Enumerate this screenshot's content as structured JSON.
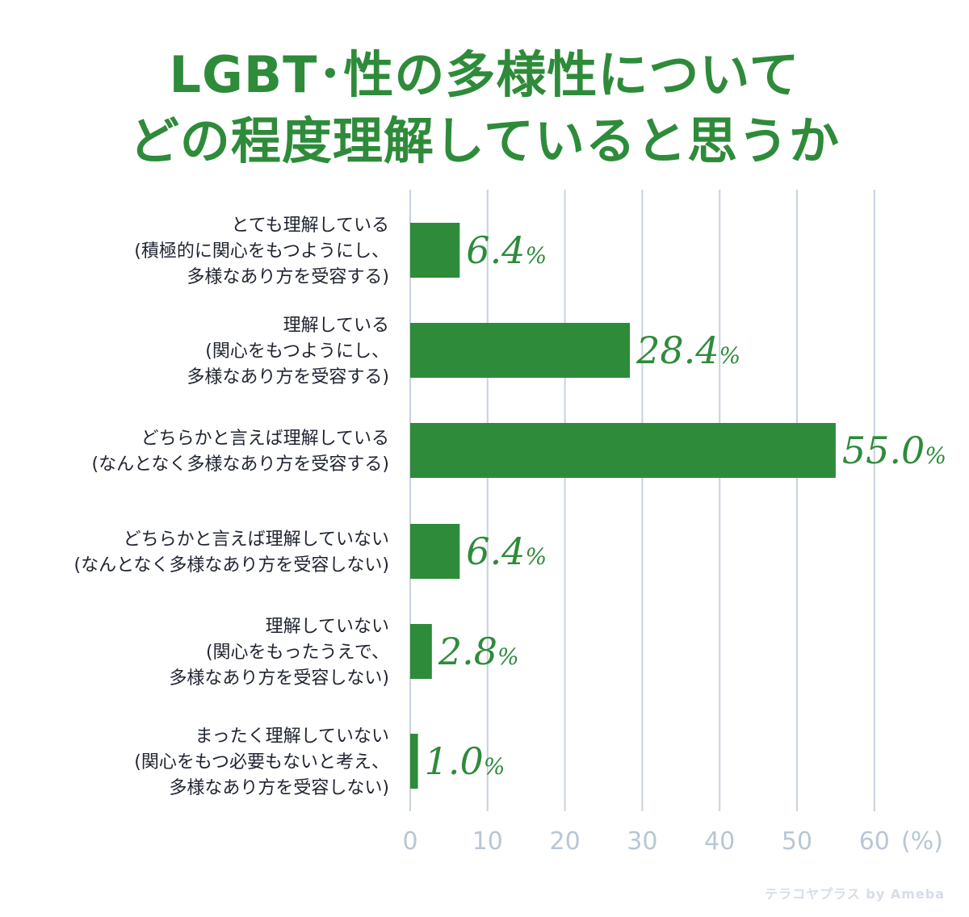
{
  "title_line1": "LGBT･性の多様性について",
  "title_line2": "どの程度理解していると思うか",
  "watermark": "テラコヤプラス by Ameba",
  "colors": {
    "bar": "#2e8b3a",
    "grid": "#c8d2de",
    "tick": "#b9c6d6",
    "title": "#2e8b3a"
  },
  "chart_data": {
    "type": "bar",
    "orientation": "horizontal",
    "categories": [
      [
        "とても理解している",
        "(積極的に関心をもつようにし、",
        "多様なあり方を受容する)"
      ],
      [
        "理解している",
        "(関心をもつようにし、",
        "多様なあり方を受容する)"
      ],
      [
        "どちらかと言えば理解している",
        "(なんとなく多様なあり方を受容する)"
      ],
      [
        "どちらかと言えば理解していない",
        "(なんとなく多様なあり方を受容しない)"
      ],
      [
        "理解していない",
        "(関心をもったうえで、",
        "多様なあり方を受容しない)"
      ],
      [
        "まったく理解していない",
        "(関心をもつ必要もないと考え、",
        "多様なあり方を受容しない)"
      ]
    ],
    "values": [
      6.4,
      28.4,
      55.0,
      6.4,
      2.8,
      1.0
    ],
    "value_labels": [
      "6.4",
      "28.4",
      "55.0",
      "6.4",
      "2.8",
      "1.0"
    ],
    "value_unit": "%",
    "xlim": [
      0,
      60
    ],
    "xticks": [
      "0",
      "10",
      "20",
      "30",
      "40",
      "50",
      "60"
    ],
    "xlabel": "(%)",
    "grid": true
  }
}
